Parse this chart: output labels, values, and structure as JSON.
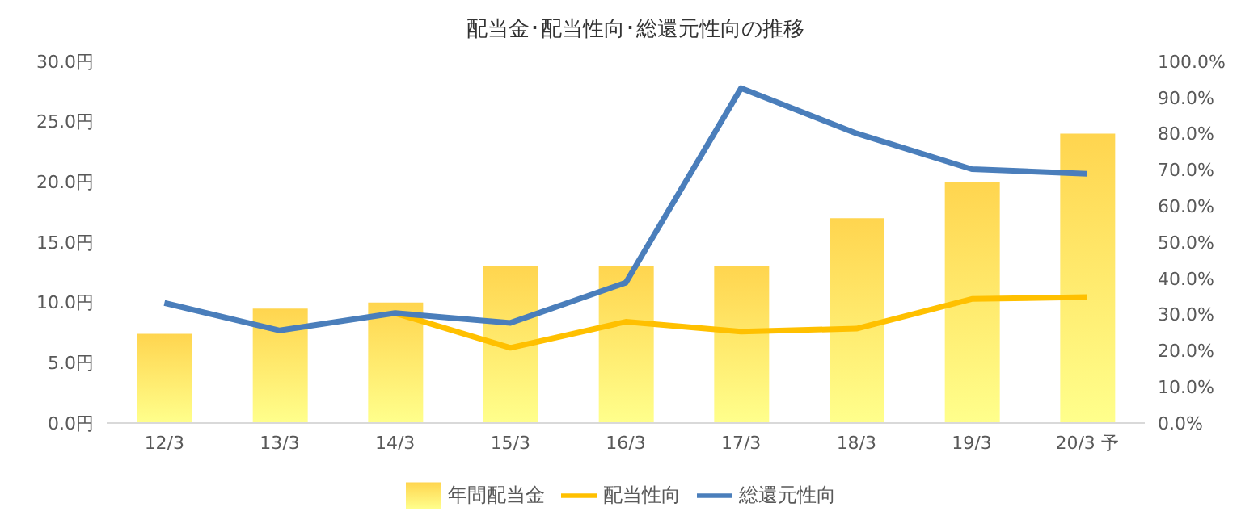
{
  "chart_data": {
    "type": "bar",
    "title": "配当金･配当性向･総還元性向の推移",
    "categories": [
      "12/3",
      "13/3",
      "14/3",
      "15/3",
      "16/3",
      "17/3",
      "18/3",
      "19/3",
      "20/3 予"
    ],
    "series": [
      {
        "name": "年間配当金",
        "color": "#ffd54f",
        "values": [
          7.4,
          9.5,
          10,
          13,
          13,
          13,
          17,
          20,
          24
        ]
      },
      {
        "name": "配当性向",
        "type": "line",
        "axis": "y2",
        "color": "#ffc000",
        "values": [
          null,
          null,
          30.4,
          20.8,
          28,
          25.3,
          26.1,
          34.3,
          34.8
        ]
      },
      {
        "name": "総還元性向",
        "type": "line",
        "axis": "y2",
        "color": "#4a7ebb",
        "values": [
          33.2,
          25.6,
          30.4,
          27.7,
          38.8,
          92.6,
          80.1,
          70.2,
          68.9
        ]
      }
    ],
    "ylim": [
      0,
      30
    ],
    "yticks": [
      {
        "value": 0,
        "label": "0.0円"
      },
      {
        "value": 5,
        "label": "5.0円"
      },
      {
        "value": 10,
        "label": "10.0円"
      },
      {
        "value": 15,
        "label": "15.0円"
      },
      {
        "value": 20,
        "label": "20.0円"
      },
      {
        "value": 25,
        "label": "25.0円"
      },
      {
        "value": 30,
        "label": "30.0円"
      }
    ],
    "y2lim": [
      0,
      100
    ],
    "y2ticks": [
      {
        "value": 0,
        "label": "0.0%"
      },
      {
        "value": 10,
        "label": "10.0%"
      },
      {
        "value": 20,
        "label": "20.0%"
      },
      {
        "value": 30,
        "label": "30.0%"
      },
      {
        "value": 40,
        "label": "40.0%"
      },
      {
        "value": 50,
        "label": "50.0%"
      },
      {
        "value": 60,
        "label": "60.0%"
      },
      {
        "value": 70,
        "label": "70.0%"
      },
      {
        "value": 80,
        "label": "80.0%"
      },
      {
        "value": 90,
        "label": "90.0%"
      },
      {
        "value": 100,
        "label": "100.0%"
      }
    ],
    "grid": false,
    "legend": "bottom",
    "marker": "none",
    "line_style": "solid"
  }
}
